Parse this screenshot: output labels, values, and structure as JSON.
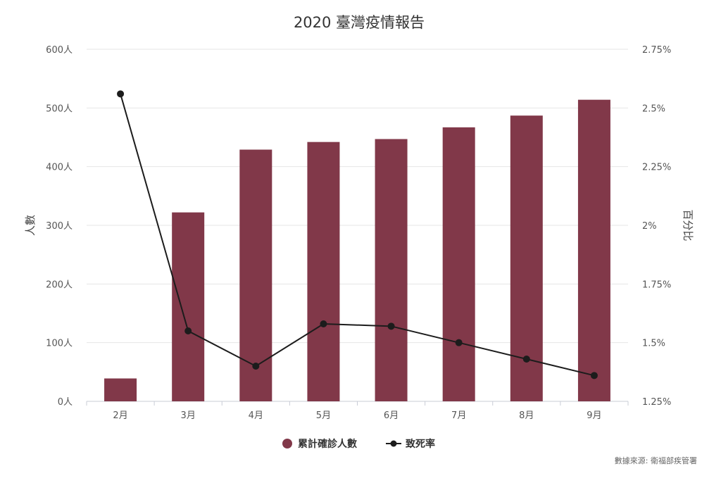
{
  "chart_data": {
    "type": "bar",
    "title": "2020 臺灣疫情報告",
    "categories": [
      "2月",
      "3月",
      "4月",
      "5月",
      "6月",
      "7月",
      "8月",
      "9月"
    ],
    "series": [
      {
        "name": "累計確診人數",
        "type": "bar",
        "axis": "left",
        "color": "#813849",
        "values": [
          39,
          322,
          429,
          442,
          447,
          467,
          487,
          514
        ]
      },
      {
        "name": "致死率",
        "type": "line",
        "axis": "right",
        "color": "#1c1c1c",
        "values": [
          2.56,
          1.55,
          1.4,
          1.58,
          1.57,
          1.5,
          1.43,
          1.36
        ]
      }
    ],
    "left_axis": {
      "label": "人數",
      "range": [
        0,
        600
      ],
      "ticks": [
        0,
        100,
        200,
        300,
        400,
        500,
        600
      ],
      "tick_labels": [
        "0人",
        "100人",
        "200人",
        "300人",
        "400人",
        "500人",
        "600人"
      ]
    },
    "right_axis": {
      "label": "百分比",
      "range": [
        1.25,
        2.75
      ],
      "ticks": [
        1.25,
        1.5,
        1.75,
        2,
        2.25,
        2.5,
        2.75
      ],
      "tick_labels": [
        "1.25%",
        "1.5%",
        "1.75%",
        "2%",
        "2.25%",
        "2.5%",
        "2.75%"
      ]
    },
    "grid": true,
    "legend_position": "bottom-center",
    "source": "數據來源: 衛福部疾管署"
  }
}
